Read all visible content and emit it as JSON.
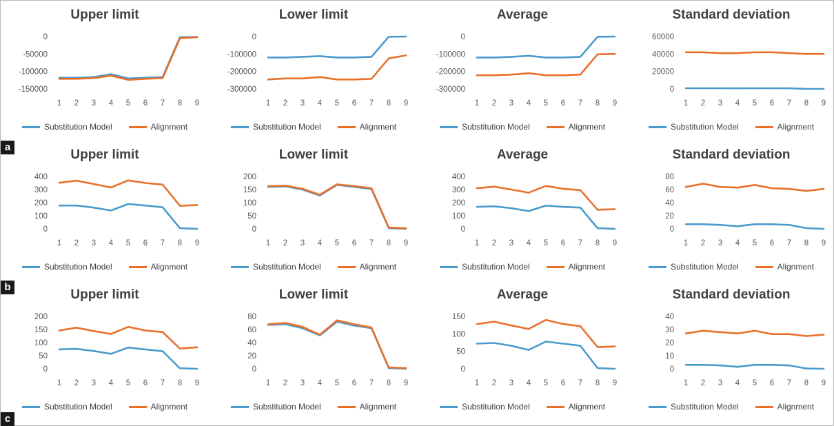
{
  "colors": {
    "substitution": "#4A9ACD",
    "alignment": "#E8702A"
  },
  "legend": {
    "substitution": "Substitution Model",
    "alignment": "Alignment"
  },
  "row_labels": [
    "a",
    "b",
    "c"
  ],
  "chart_data": [
    {
      "type": "line",
      "title": "Upper limit",
      "categories": [
        1,
        2,
        3,
        4,
        5,
        6,
        7,
        8,
        9
      ],
      "ylim": [
        -150000,
        0
      ],
      "yticks": [
        0,
        -50000,
        -100000,
        -150000
      ],
      "series": [
        {
          "name": "Substitution Model",
          "values": [
            -118000,
            -118000,
            -116000,
            -108000,
            -120000,
            -118000,
            -116000,
            -2000,
            -1000
          ]
        },
        {
          "name": "Alignment",
          "values": [
            -121000,
            -121000,
            -119000,
            -112000,
            -124000,
            -121000,
            -119000,
            -5000,
            -2000
          ]
        }
      ]
    },
    {
      "type": "line",
      "title": "Lower limit",
      "categories": [
        1,
        2,
        3,
        4,
        5,
        6,
        7,
        8,
        9
      ],
      "ylim": [
        -300000,
        0
      ],
      "yticks": [
        0,
        -100000,
        -200000,
        -300000
      ],
      "series": [
        {
          "name": "Substitution Model",
          "values": [
            -120000,
            -120000,
            -116000,
            -112000,
            -120000,
            -120000,
            -116000,
            -1000,
            0
          ]
        },
        {
          "name": "Alignment",
          "values": [
            -246000,
            -240000,
            -240000,
            -232000,
            -246000,
            -246000,
            -242000,
            -125000,
            -108000
          ]
        }
      ]
    },
    {
      "type": "line",
      "title": "Average",
      "categories": [
        1,
        2,
        3,
        4,
        5,
        6,
        7,
        8,
        9
      ],
      "ylim": [
        -300000,
        0
      ],
      "yticks": [
        0,
        -100000,
        -200000,
        -300000
      ],
      "series": [
        {
          "name": "Substitution Model",
          "values": [
            -120000,
            -120000,
            -116000,
            -110000,
            -120000,
            -120000,
            -116000,
            -1000,
            0
          ]
        },
        {
          "name": "Alignment",
          "values": [
            -222000,
            -222000,
            -218000,
            -210000,
            -222000,
            -222000,
            -218000,
            -102000,
            -100000
          ]
        }
      ]
    },
    {
      "type": "line",
      "title": "Standard deviation",
      "categories": [
        1,
        2,
        3,
        4,
        5,
        6,
        7,
        8,
        9
      ],
      "ylim": [
        0,
        60000
      ],
      "yticks": [
        60000,
        40000,
        20000,
        0
      ],
      "series": [
        {
          "name": "Substitution Model",
          "values": [
            800,
            800,
            800,
            700,
            800,
            800,
            700,
            100,
            0
          ]
        },
        {
          "name": "Alignment",
          "values": [
            42000,
            42000,
            41000,
            41000,
            42000,
            42000,
            41000,
            40000,
            40000
          ]
        }
      ]
    },
    {
      "type": "line",
      "title": "Upper limit",
      "categories": [
        1,
        2,
        3,
        4,
        5,
        6,
        7,
        8,
        9
      ],
      "ylim": [
        0,
        400
      ],
      "yticks": [
        400,
        300,
        200,
        100,
        0
      ],
      "series": [
        {
          "name": "Substitution Model",
          "values": [
            178,
            178,
            162,
            140,
            190,
            178,
            165,
            5,
            0
          ]
        },
        {
          "name": "Alignment",
          "values": [
            352,
            368,
            342,
            316,
            370,
            350,
            338,
            176,
            182
          ]
        }
      ]
    },
    {
      "type": "line",
      "title": "Lower limit",
      "categories": [
        1,
        2,
        3,
        4,
        5,
        6,
        7,
        8,
        9
      ],
      "ylim": [
        0,
        200
      ],
      "yticks": [
        200,
        150,
        100,
        50,
        0
      ],
      "series": [
        {
          "name": "Substitution Model",
          "values": [
            160,
            162,
            150,
            127,
            168,
            160,
            152,
            3,
            0
          ]
        },
        {
          "name": "Alignment",
          "values": [
            163,
            165,
            153,
            130,
            170,
            163,
            155,
            5,
            2
          ]
        }
      ]
    },
    {
      "type": "line",
      "title": "Average",
      "categories": [
        1,
        2,
        3,
        4,
        5,
        6,
        7,
        8,
        9
      ],
      "ylim": [
        0,
        400
      ],
      "yticks": [
        400,
        300,
        200,
        100,
        0
      ],
      "series": [
        {
          "name": "Substitution Model",
          "values": [
            168,
            172,
            158,
            136,
            178,
            168,
            162,
            5,
            0
          ]
        },
        {
          "name": "Alignment",
          "values": [
            310,
            322,
            300,
            276,
            328,
            306,
            296,
            146,
            150
          ]
        }
      ]
    },
    {
      "type": "line",
      "title": "Standard deviation",
      "categories": [
        1,
        2,
        3,
        4,
        5,
        6,
        7,
        8,
        9
      ],
      "ylim": [
        0,
        80
      ],
      "yticks": [
        80,
        60,
        40,
        20,
        0
      ],
      "series": [
        {
          "name": "Substitution Model",
          "values": [
            7,
            7,
            6,
            4,
            7,
            7,
            6,
            1,
            0
          ]
        },
        {
          "name": "Alignment",
          "values": [
            64,
            69,
            64,
            63,
            67,
            62,
            61,
            58,
            61
          ]
        }
      ]
    },
    {
      "type": "line",
      "title": "Upper limit",
      "categories": [
        1,
        2,
        3,
        4,
        5,
        6,
        7,
        8,
        9
      ],
      "ylim": [
        0,
        200
      ],
      "yticks": [
        200,
        150,
        100,
        50,
        0
      ],
      "series": [
        {
          "name": "Substitution Model",
          "values": [
            74,
            76,
            68,
            57,
            81,
            74,
            67,
            2,
            0
          ]
        },
        {
          "name": "Alignment",
          "values": [
            146,
            157,
            144,
            133,
            160,
            146,
            140,
            77,
            82
          ]
        }
      ]
    },
    {
      "type": "line",
      "title": "Lower limit",
      "categories": [
        1,
        2,
        3,
        4,
        5,
        6,
        7,
        8,
        9
      ],
      "ylim": [
        0,
        80
      ],
      "yticks": [
        80,
        60,
        40,
        20,
        0
      ],
      "series": [
        {
          "name": "Substitution Model",
          "values": [
            67,
            68,
            62,
            51,
            72,
            66,
            62,
            1,
            0
          ]
        },
        {
          "name": "Alignment",
          "values": [
            68,
            70,
            64,
            52,
            74,
            68,
            63,
            2,
            1
          ]
        }
      ]
    },
    {
      "type": "line",
      "title": "Average",
      "categories": [
        1,
        2,
        3,
        4,
        5,
        6,
        7,
        8,
        9
      ],
      "ylim": [
        0,
        150
      ],
      "yticks": [
        150,
        100,
        50,
        0
      ],
      "series": [
        {
          "name": "Substitution Model",
          "values": [
            72,
            74,
            66,
            54,
            78,
            72,
            66,
            2,
            0
          ]
        },
        {
          "name": "Alignment",
          "values": [
            128,
            135,
            124,
            114,
            140,
            128,
            122,
            62,
            64
          ]
        }
      ]
    },
    {
      "type": "line",
      "title": "Standard deviation",
      "categories": [
        1,
        2,
        3,
        4,
        5,
        6,
        7,
        8,
        9
      ],
      "ylim": [
        0,
        40
      ],
      "yticks": [
        40,
        30,
        20,
        10,
        0
      ],
      "series": [
        {
          "name": "Substitution Model",
          "values": [
            3,
            3,
            2.6,
            1.5,
            3,
            3,
            2.6,
            0.2,
            0
          ]
        },
        {
          "name": "Alignment",
          "values": [
            27,
            29,
            28,
            27,
            29,
            26.5,
            26.5,
            25,
            26
          ]
        }
      ]
    }
  ]
}
